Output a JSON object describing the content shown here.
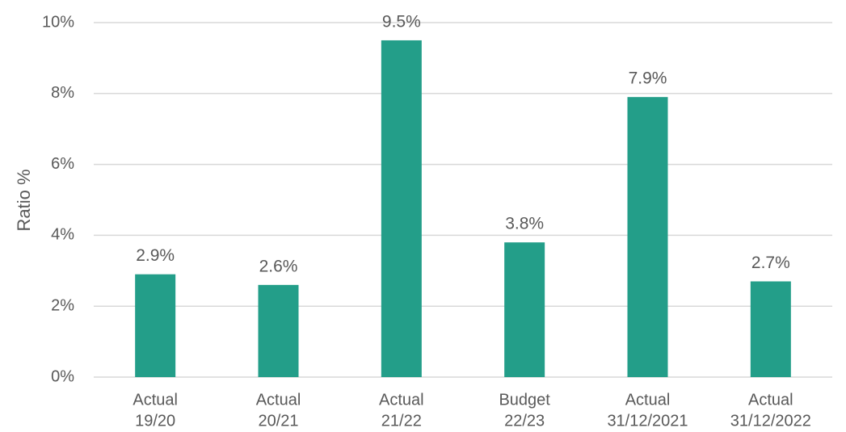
{
  "chart_data": {
    "type": "bar",
    "categories": [
      [
        "Actual",
        "19/20"
      ],
      [
        "Actual",
        "20/21"
      ],
      [
        "Actual",
        "21/22"
      ],
      [
        "Budget",
        "22/23"
      ],
      [
        "Actual",
        "31/12/2021"
      ],
      [
        "Actual",
        "31/12/2022"
      ]
    ],
    "values": [
      2.9,
      2.6,
      9.5,
      3.8,
      7.9,
      2.7
    ],
    "data_labels": [
      "2.9%",
      "2.6%",
      "9.5%",
      "3.8%",
      "7.9%",
      "2.7%"
    ],
    "ylabel": "Ratio %",
    "ylim": [
      0,
      10
    ],
    "yticks": [
      0,
      2,
      4,
      6,
      8,
      10
    ],
    "ytick_labels": [
      "0%",
      "2%",
      "4%",
      "6%",
      "8%",
      "10%"
    ],
    "grid": true,
    "legend": "none",
    "bar_color": "#239e89"
  }
}
